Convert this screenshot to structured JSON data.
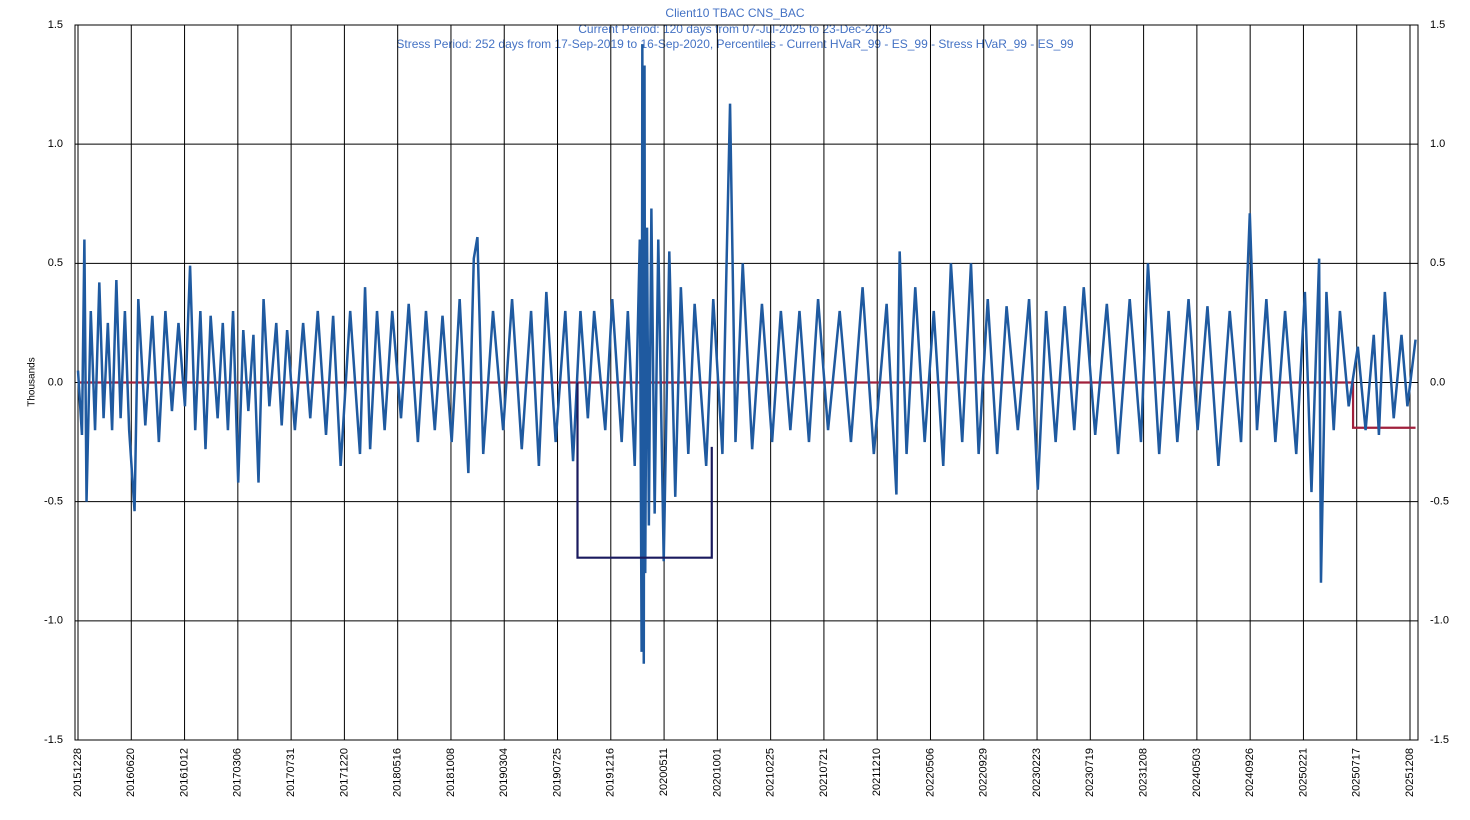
{
  "chart_data": {
    "type": "line",
    "title": [
      "Client10 TBAC CNS_BAC",
      "Current Period:  120 days from 07-Jul-2025 to 23-Dec-2025",
      "Stress Period: 252 days from 17-Sep-2019 to 16-Sep-2020, Percentiles - Current HVaR_99 - ES_99 - Stress HVaR_99 - ES_99"
    ],
    "y_label": "Thousands",
    "ylim": [
      -1.5,
      1.5
    ],
    "yticks": [
      -1.5,
      {
        "value": -1,
        "label": "-1.0"
      },
      -0.5,
      {
        "value": 0,
        "label": "0.0"
      },
      0.5,
      {
        "value": 1,
        "label": "1.0"
      },
      1.5
    ],
    "xticks": [
      "20151228",
      "20160620",
      "20161012",
      "20170306",
      "20170731",
      "20171220",
      "20180516",
      "20181008",
      "20190304",
      "20190725",
      "20191216",
      "20200511",
      "20201001",
      "20210225",
      "20210721",
      "20211210",
      "20220506",
      "20220929",
      "20230223",
      "20230719",
      "20231208",
      "20240503",
      "20240926",
      "20250221",
      "20250717",
      "20251208"
    ],
    "grid": true,
    "series": [
      {
        "color": "#1f5aa0",
        "x": [
          "20151228",
          "20160110",
          "20160118",
          "20160125",
          "20160208",
          "20160222",
          "20160307",
          "20160321",
          "20160404",
          "20160418",
          "20160502",
          "20160516",
          "20160530",
          "20160613",
          "20160627",
          "20160705",
          "20160720",
          "20160804",
          "20160818",
          "20160901",
          "20160915",
          "20160929",
          "20161013",
          "20161027",
          "20161110",
          "20161124",
          "20161208",
          "20161222",
          "20170110",
          "20170124",
          "20170207",
          "20170221",
          "20170307",
          "20170321",
          "20170404",
          "20170418",
          "20170502",
          "20170516",
          "20170601",
          "20170620",
          "20170705",
          "20170720",
          "20170810",
          "20170901",
          "20170920",
          "20171010",
          "20171101",
          "20171120",
          "20171210",
          "20180105",
          "20180201",
          "20180215",
          "20180301",
          "20180320",
          "20180410",
          "20180501",
          "20180525",
          "20180615",
          "20180710",
          "20180801",
          "20180825",
          "20180915",
          "20181010",
          "20181101",
          "20181125",
          "20181210",
          "20181220",
          "20190105",
          "20190201",
          "20190301",
          "20190325",
          "20190420",
          "20190515",
          "20190605",
          "20190625",
          "20190720",
          "20190815",
          "20190905",
          "20190925",
          "20191015",
          "20191101",
          "20191201",
          "20191220",
          "20200115",
          "20200201",
          "20200220",
          "20200305",
          "20200310",
          "20200312",
          "20200316",
          "20200318",
          "20200320",
          "20200325",
          "20200330",
          "20200406",
          "20200415",
          "20200425",
          "20200510",
          "20200525",
          "20200610",
          "20200625",
          "20200715",
          "20200801",
          "20200901",
          "20200920",
          "20201015",
          "20201105",
          "20201120",
          "20201210",
          "20210105",
          "20210201",
          "20210301",
          "20210325",
          "20210420",
          "20210515",
          "20210610",
          "20210705",
          "20210801",
          "20210901",
          "20211001",
          "20211101",
          "20211201",
          "20220105",
          "20220201",
          "20220210",
          "20220301",
          "20220325",
          "20220420",
          "20220515",
          "20220610",
          "20220701",
          "20220801",
          "20220825",
          "20220915",
          "20221010",
          "20221105",
          "20221201",
          "20230101",
          "20230201",
          "20230225",
          "20230320",
          "20230415",
          "20230510",
          "20230605",
          "20230701",
          "20230801",
          "20230901",
          "20231001",
          "20231101",
          "20231201",
          "20231220",
          "20240120",
          "20240215",
          "20240310",
          "20240410",
          "20240505",
          "20240601",
          "20240701",
          "20240801",
          "20240901",
          "20240925",
          "20241015",
          "20241110",
          "20241205",
          "20250101",
          "20250201",
          "20250225",
          "20250315",
          "20250405",
          "20250410",
          "20250425",
          "20250515",
          "20250601",
          "20250625",
          "20250720",
          "20250810",
          "20250901",
          "20250915",
          "20251001",
          "20251025",
          "20251115",
          "20251201",
          "20251223"
        ],
        "values": [
          0.05,
          -0.22,
          0.6,
          -0.5,
          0.3,
          -0.2,
          0.42,
          -0.15,
          0.25,
          -0.2,
          0.43,
          -0.15,
          0.3,
          -0.2,
          -0.54,
          0.35,
          -0.18,
          0.28,
          -0.25,
          0.3,
          -0.12,
          0.25,
          -0.1,
          0.49,
          -0.2,
          0.3,
          -0.28,
          0.28,
          -0.15,
          0.25,
          -0.2,
          0.3,
          -0.42,
          0.22,
          -0.12,
          0.2,
          -0.42,
          0.35,
          -0.1,
          0.25,
          -0.18,
          0.22,
          -0.2,
          0.25,
          -0.15,
          0.3,
          -0.22,
          0.28,
          -0.35,
          0.3,
          -0.3,
          0.4,
          -0.28,
          0.3,
          -0.2,
          0.3,
          -0.15,
          0.33,
          -0.25,
          0.3,
          -0.2,
          0.28,
          -0.25,
          0.35,
          -0.38,
          0.52,
          0.61,
          -0.3,
          0.3,
          -0.2,
          0.35,
          -0.28,
          0.3,
          -0.35,
          0.38,
          -0.25,
          0.3,
          -0.33,
          0.3,
          -0.15,
          0.3,
          -0.2,
          0.35,
          -0.25,
          0.3,
          -0.35,
          0.6,
          -1.13,
          1.42,
          -1.18,
          1.33,
          -0.8,
          0.65,
          -0.6,
          0.73,
          -0.55,
          0.6,
          -0.75,
          0.55,
          -0.48,
          0.4,
          -0.3,
          0.33,
          -0.35,
          0.35,
          -0.3,
          1.17,
          -0.25,
          0.5,
          -0.28,
          0.33,
          -0.25,
          0.3,
          -0.2,
          0.3,
          -0.25,
          0.35,
          -0.2,
          0.3,
          -0.25,
          0.4,
          -0.3,
          0.33,
          -0.47,
          0.55,
          -0.3,
          0.4,
          -0.25,
          0.3,
          -0.35,
          0.5,
          -0.25,
          0.5,
          -0.3,
          0.35,
          -0.3,
          0.32,
          -0.2,
          0.35,
          -0.45,
          0.3,
          -0.25,
          0.32,
          -0.2,
          0.4,
          -0.22,
          0.33,
          -0.3,
          0.35,
          -0.25,
          0.5,
          -0.3,
          0.3,
          -0.25,
          0.35,
          -0.2,
          0.32,
          -0.35,
          0.3,
          -0.25,
          0.71,
          -0.2,
          0.35,
          -0.25,
          0.3,
          -0.3,
          0.38,
          -0.46,
          0.52,
          -0.84,
          0.38,
          -0.2,
          0.3,
          -0.1,
          0.15,
          -0.2,
          0.2,
          -0.22,
          0.38,
          -0.15,
          0.2,
          -0.1,
          0.18
        ]
      },
      {
        "color": "#a0203c",
        "x": [
          "20151228",
          "20250707",
          "20250707",
          "20251223"
        ],
        "values": [
          0,
          0,
          -0.19,
          -0.19
        ]
      },
      {
        "color": "#1a1a5e",
        "x": [
          "20190917",
          "20190917",
          "20200916",
          "20200916"
        ],
        "values": [
          0,
          -0.735,
          -0.735,
          -0.27
        ]
      }
    ]
  }
}
